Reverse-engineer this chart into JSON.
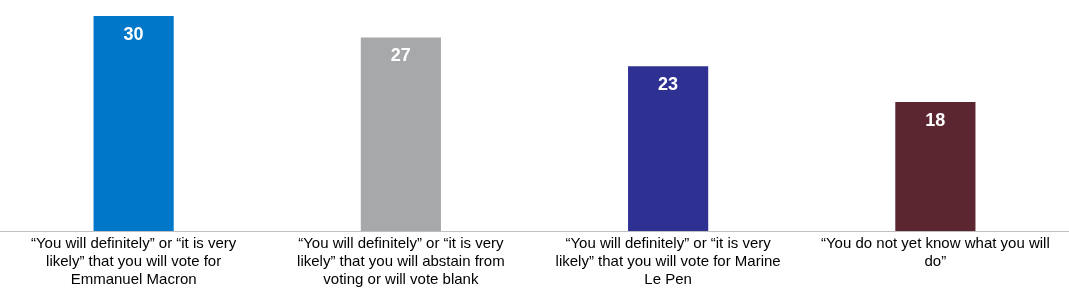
{
  "chart_data": {
    "type": "bar",
    "categories": [
      "“You will definitely” or “it is very likely” that you will vote for Emmanuel Macron",
      "“You will definitely” or “it is very likely” that you will abstain from voting or will vote blank",
      "“You will definitely” or “it is very likely” that you will vote for Marine Le Pen",
      "“You do not yet know what you will do”"
    ],
    "values": [
      30,
      27,
      23,
      18
    ],
    "colors": [
      "#0077c8",
      "#a7a8aa",
      "#2e3192",
      "#5c2630"
    ],
    "data_labels": true,
    "tick_labels": "x",
    "grid": false,
    "legend": false
  }
}
